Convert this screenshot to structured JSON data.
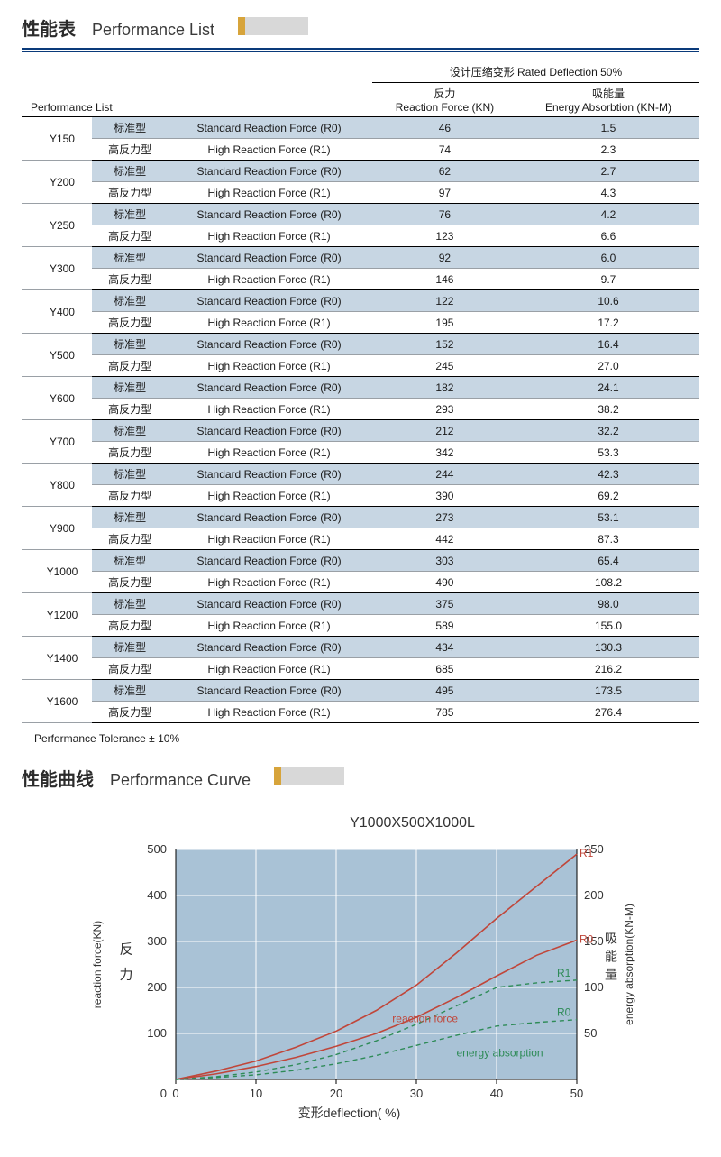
{
  "header1": {
    "cn": "性能表",
    "en": "Performance List"
  },
  "header2": {
    "cn": "性能曲线",
    "en": "Performance Curve"
  },
  "table": {
    "top_heading": "设计压缩变形 Rated Deflection  50%",
    "perf_list_label": "Performance List",
    "col_force_cn": "反力",
    "col_force_en": "Reaction Force (KN)",
    "col_energy_cn": "吸能量",
    "col_energy_en": "Energy Absorbtion (KN-M)",
    "std_cn": "标准型",
    "std_en": "Standard Reaction Force (R0)",
    "hi_cn": "高反力型",
    "hi_en": "High Reaction Force (R1)",
    "rows": [
      {
        "model": "Y150",
        "std_f": "46",
        "std_e": "1.5",
        "hi_f": "74",
        "hi_e": "2.3"
      },
      {
        "model": "Y200",
        "std_f": "62",
        "std_e": "2.7",
        "hi_f": "97",
        "hi_e": "4.3"
      },
      {
        "model": "Y250",
        "std_f": "76",
        "std_e": "4.2",
        "hi_f": "123",
        "hi_e": "6.6"
      },
      {
        "model": "Y300",
        "std_f": "92",
        "std_e": "6.0",
        "hi_f": "146",
        "hi_e": "9.7"
      },
      {
        "model": "Y400",
        "std_f": "122",
        "std_e": "10.6",
        "hi_f": "195",
        "hi_e": "17.2"
      },
      {
        "model": "Y500",
        "std_f": "152",
        "std_e": "16.4",
        "hi_f": "245",
        "hi_e": "27.0"
      },
      {
        "model": "Y600",
        "std_f": "182",
        "std_e": "24.1",
        "hi_f": "293",
        "hi_e": "38.2"
      },
      {
        "model": "Y700",
        "std_f": "212",
        "std_e": "32.2",
        "hi_f": "342",
        "hi_e": "53.3"
      },
      {
        "model": "Y800",
        "std_f": "244",
        "std_e": "42.3",
        "hi_f": "390",
        "hi_e": "69.2"
      },
      {
        "model": "Y900",
        "std_f": "273",
        "std_e": "53.1",
        "hi_f": "442",
        "hi_e": "87.3"
      },
      {
        "model": "Y1000",
        "std_f": "303",
        "std_e": "65.4",
        "hi_f": "490",
        "hi_e": "108.2"
      },
      {
        "model": "Y1200",
        "std_f": "375",
        "std_e": "98.0",
        "hi_f": "589",
        "hi_e": "155.0"
      },
      {
        "model": "Y1400",
        "std_f": "434",
        "std_e": "130.3",
        "hi_f": "685",
        "hi_e": "216.2"
      },
      {
        "model": "Y1600",
        "std_f": "495",
        "std_e": "173.5",
        "hi_f": "785",
        "hi_e": "276.4"
      }
    ],
    "tolerance": "Performance Tolerance ± 10%"
  },
  "chart": {
    "title": "Y1000X500X1000L",
    "plot_bg": "#a9c2d6",
    "grid_color": "#ffffff",
    "force_color": "#c0463a",
    "energy_color": "#2e8b57",
    "text_color": "#333333",
    "x": {
      "label_cn": "变形",
      "label_en": "deflection( %)",
      "min": 0,
      "max": 50,
      "ticks": [
        0,
        10,
        20,
        30,
        40,
        50
      ]
    },
    "y_left": {
      "label_en": "reaction force(KN)",
      "label_cn": "反力",
      "min": 0,
      "max": 500,
      "ticks": [
        0,
        100,
        200,
        300,
        400,
        500
      ]
    },
    "y_right": {
      "label_en": "energy absorption(KN-M)",
      "label_cn": "吸能量",
      "min": 0,
      "max": 250,
      "ticks": [
        50,
        100,
        150,
        200,
        250
      ]
    },
    "annotations": {
      "reaction_force": "reaction force",
      "energy_absorption": "energy absorption",
      "R0": "R0",
      "R1": "R1"
    },
    "series": {
      "force_R1": [
        [
          0,
          0
        ],
        [
          5,
          18
        ],
        [
          10,
          40
        ],
        [
          15,
          70
        ],
        [
          20,
          105
        ],
        [
          25,
          150
        ],
        [
          30,
          205
        ],
        [
          35,
          275
        ],
        [
          40,
          350
        ],
        [
          45,
          420
        ],
        [
          50,
          490
        ]
      ],
      "force_R0": [
        [
          0,
          0
        ],
        [
          5,
          12
        ],
        [
          10,
          28
        ],
        [
          15,
          48
        ],
        [
          20,
          72
        ],
        [
          25,
          100
        ],
        [
          30,
          135
        ],
        [
          35,
          178
        ],
        [
          40,
          225
        ],
        [
          45,
          270
        ],
        [
          50,
          303
        ]
      ],
      "energy_R1": [
        [
          0,
          0
        ],
        [
          5,
          3
        ],
        [
          10,
          8
        ],
        [
          15,
          16
        ],
        [
          20,
          27
        ],
        [
          25,
          42
        ],
        [
          30,
          60
        ],
        [
          35,
          80
        ],
        [
          40,
          100
        ],
        [
          45,
          105
        ],
        [
          50,
          108
        ]
      ],
      "energy_R0": [
        [
          0,
          0
        ],
        [
          5,
          2
        ],
        [
          10,
          5
        ],
        [
          15,
          10
        ],
        [
          20,
          17
        ],
        [
          25,
          26
        ],
        [
          30,
          37
        ],
        [
          35,
          48
        ],
        [
          40,
          58
        ],
        [
          45,
          62
        ],
        [
          50,
          65
        ]
      ]
    }
  }
}
